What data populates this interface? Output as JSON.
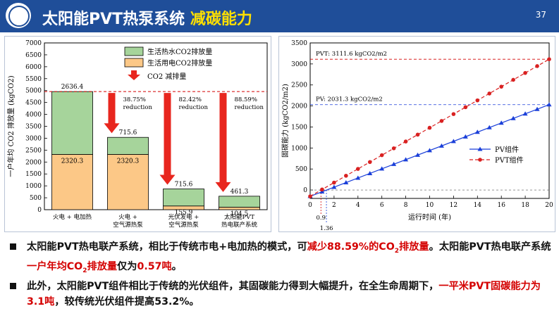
{
  "header": {
    "title_main": "太阳能PVT热泵系统",
    "title_highlight": "减碳能力",
    "page_number": "37",
    "logo": "university-seal"
  },
  "chart_data": [
    {
      "type": "bar",
      "ylabel": "一户年均 CO2 排放量 (kgCO2)",
      "ylim": [
        0,
        7000
      ],
      "yticks": [
        0,
        500,
        1000,
        1500,
        2000,
        2500,
        3000,
        3500,
        4000,
        4500,
        5000,
        5500,
        6000,
        6500,
        7000
      ],
      "categories": [
        [
          "火电 + 电加热"
        ],
        [
          "火电 +",
          "空气源热泵"
        ],
        [
          "光伏发电 +",
          "空气源热泵"
        ],
        [
          "太阳能PVT",
          "热电联产系统"
        ]
      ],
      "series": [
        {
          "name": "生活用电CO2排放量",
          "color": "#fcc887",
          "values": [
            2320.3,
            2320.3,
            155.9,
            104.5
          ],
          "labels": [
            "2320.3",
            "2320.3",
            "155.9",
            "104.5"
          ]
        },
        {
          "name": "生活热水CO2排放量",
          "color": "#a6d49b",
          "values": [
            2636.4,
            715.6,
            715.6,
            461.3
          ],
          "labels": [
            "2636.4",
            "715.6",
            "715.6",
            "461.3"
          ]
        }
      ],
      "reference_line": 4956.7,
      "reduction_arrows": [
        {
          "category": 1,
          "pct": "38.75%",
          "word": "reduction"
        },
        {
          "category": 2,
          "pct": "82.42%",
          "word": "reduction"
        },
        {
          "category": 3,
          "pct": "88.59%",
          "word": "reduction"
        }
      ],
      "legend": {
        "placement": "top-center",
        "reduction_label": "CO2 减排量"
      }
    },
    {
      "type": "line",
      "xlabel": "运行时间 (年)",
      "ylabel": "固碳能力 (kgCO2/m2)",
      "xlim": [
        0,
        20
      ],
      "ylim": [
        -200,
        3500
      ],
      "xticks": [
        0,
        2,
        4,
        6,
        8,
        10,
        12,
        14,
        16,
        18,
        20
      ],
      "yticks": [
        0,
        500,
        1000,
        1500,
        2000,
        2500,
        3000,
        3500
      ],
      "series": [
        {
          "name": "PV组件",
          "color": "#1a3fd9",
          "marker": "triangle",
          "style": "solid",
          "x": [
            0,
            20
          ],
          "y": [
            -150,
            2031.3
          ]
        },
        {
          "name": "PVT组件",
          "color": "#d92121",
          "marker": "circle",
          "style": "dashed",
          "x": [
            0,
            20
          ],
          "y": [
            -150,
            3111.6
          ]
        }
      ],
      "annotations": [
        {
          "text": "PVT: 3111.6 kgCO2/m2",
          "y": 3111.6
        },
        {
          "text": "PV: 2031.3 kgCO2/m2",
          "y": 2031.3
        },
        {
          "text": "0.9",
          "x": 0.9
        },
        {
          "text": "1.36",
          "x": 1.36
        }
      ],
      "legend": {
        "placement": "bottom-right"
      }
    }
  ],
  "bullets": [
    {
      "parts": [
        {
          "t": "太阳能PVT热电联产系统，相比于传统市电+电加热的模式，可",
          "red": false
        },
        {
          "t": "减少88.59%的CO",
          "red": true
        },
        {
          "t": "2",
          "red": true,
          "sub": true
        },
        {
          "t": "排放量",
          "red": true
        },
        {
          "t": "。太阳能PVT热电联产系统",
          "red": false
        },
        {
          "t": "一户年均CO",
          "red": true
        },
        {
          "t": "2",
          "red": true,
          "sub": true
        },
        {
          "t": "排放量",
          "red": true
        },
        {
          "t": "仅为",
          "red": false
        },
        {
          "t": "0.57吨",
          "red": true
        },
        {
          "t": "。",
          "red": false
        }
      ]
    },
    {
      "parts": [
        {
          "t": "此外，太阳能PVT组件相比于传统的光伏组件，其固碳能力得到大幅提升，在全生命周期下，",
          "red": false
        },
        {
          "t": "一平米PVT固碳能力为3.1吨",
          "red": true
        },
        {
          "t": "，较传统光伏组件提高53.2%。",
          "red": false
        }
      ]
    }
  ]
}
